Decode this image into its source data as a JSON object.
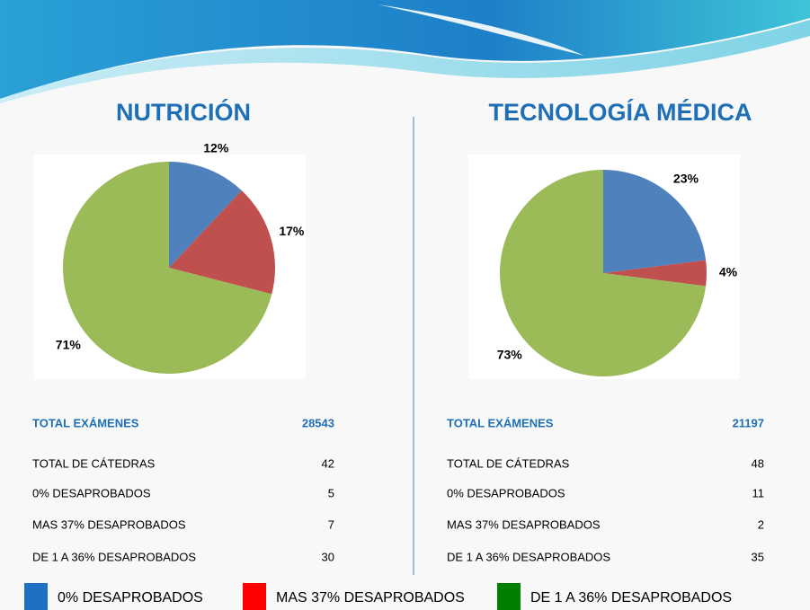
{
  "chart_data": [
    {
      "type": "pie",
      "title": "NUTRICIÓN",
      "values": [
        12,
        17,
        71
      ],
      "value_labels": [
        "12%",
        "17%",
        "71%"
      ],
      "colors": [
        "#4f81bd",
        "#c0504d",
        "#9bbb59"
      ]
    },
    {
      "type": "pie",
      "title": "TECNOLOGÍA MÉDICA",
      "values": [
        23,
        4,
        73
      ],
      "value_labels": [
        "23%",
        "4%",
        "73%"
      ],
      "colors": [
        "#4f81bd",
        "#c0504d",
        "#9bbb59"
      ]
    }
  ],
  "tables": [
    {
      "header": [
        "TOTAL EXÁMENES",
        "28543"
      ],
      "rows": [
        [
          "TOTAL DE CÁTEDRAS",
          "42"
        ],
        [
          "0% DESAPROBADOS",
          "5"
        ],
        [
          "MAS 37% DESAPROBADOS",
          "7"
        ],
        [
          "DE 1 A 36% DESAPROBADOS",
          "30"
        ]
      ]
    },
    {
      "header": [
        "TOTAL EXÁMENES",
        "21197"
      ],
      "rows": [
        [
          "TOTAL DE CÁTEDRAS",
          "48"
        ],
        [
          "0% DESAPROBADOS",
          "11"
        ],
        [
          "MAS 37% DESAPROBADOS",
          "2"
        ],
        [
          "DE 1 A 36% DESAPROBADOS",
          "35"
        ]
      ]
    }
  ],
  "legend": [
    {
      "label": "0% DESAPROBADOS",
      "color": "#1f6fc5"
    },
    {
      "label": "MAS 37% DESAPROBADOS",
      "color": "#ff0000"
    },
    {
      "label": "DE 1 A 36% DESAPROBADOS",
      "color": "#008000"
    }
  ]
}
